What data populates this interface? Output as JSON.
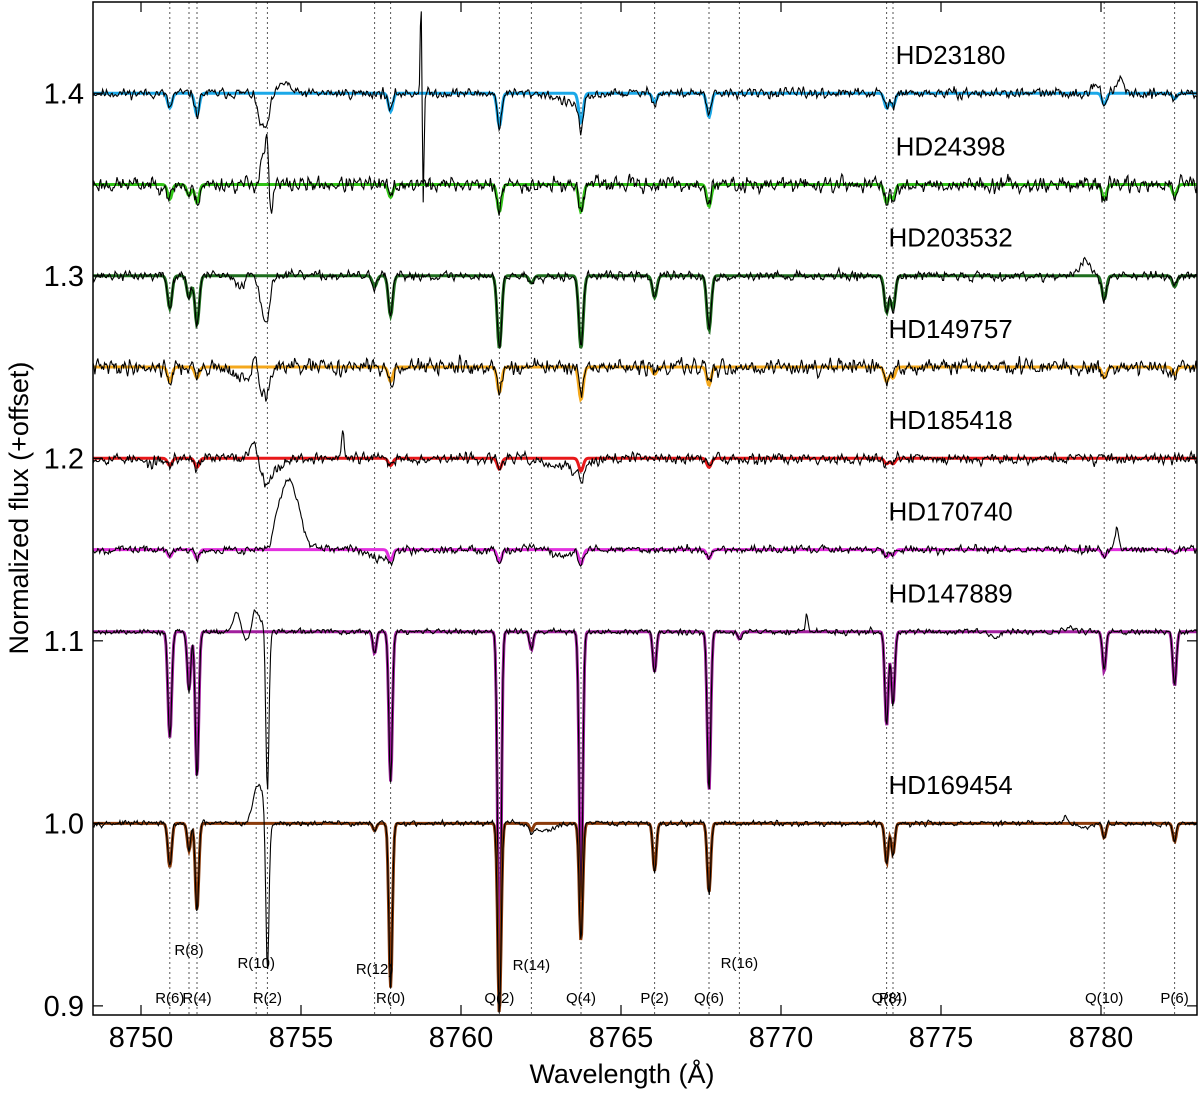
{
  "chart_data": {
    "type": "line",
    "xlabel": "Wavelength (Å)",
    "ylabel": "Normalized flux (+offset)",
    "xlim": [
      8748.5,
      8783
    ],
    "ylim": [
      0.895,
      1.45
    ],
    "xticks": [
      8750,
      8755,
      8760,
      8765,
      8770,
      8775,
      8780
    ],
    "xtick_labels": [
      "8750",
      "8755",
      "8760",
      "8765",
      "8770",
      "8775",
      "8780"
    ],
    "yticks": [
      0.9,
      1.0,
      1.1,
      1.2,
      1.3,
      1.4
    ],
    "ytick_labels": [
      "0.9",
      "1.0",
      "1.1",
      "1.2",
      "1.3",
      "1.4"
    ],
    "grid": "vertical dotted lines at transition wavelengths",
    "transitions": [
      {
        "label": "R(6)",
        "x": 8750.9,
        "row": 3
      },
      {
        "label": "R(8)",
        "x": 8751.5,
        "row": 1
      },
      {
        "label": "R(4)",
        "x": 8751.75,
        "row": 3
      },
      {
        "label": "R(10)",
        "x": 8753.6,
        "row": 2
      },
      {
        "label": "R(2)",
        "x": 8753.95,
        "row": 3
      },
      {
        "label": "R(12)",
        "x": 8757.3,
        "row": 2
      },
      {
        "label": "R(0)",
        "x": 8757.8,
        "row": 3
      },
      {
        "label": "Q(2)",
        "x": 8761.2,
        "row": 3
      },
      {
        "label": "R(14)",
        "x": 8762.2,
        "row": 2
      },
      {
        "label": "Q(4)",
        "x": 8763.75,
        "row": 3
      },
      {
        "label": "P(2)",
        "x": 8766.05,
        "row": 3
      },
      {
        "label": "Q(6)",
        "x": 8767.75,
        "row": 3
      },
      {
        "label": "R(16)",
        "x": 8768.7,
        "row": 2
      },
      {
        "label": "Q(8)",
        "x": 8773.3,
        "row": 3
      },
      {
        "label": "P(4)",
        "x": 8773.5,
        "row": 3
      },
      {
        "label": "Q(10)",
        "x": 8780.1,
        "row": 3
      },
      {
        "label": "P(6)",
        "x": 8782.3,
        "row": 3
      }
    ],
    "series": [
      {
        "name": "HD23180",
        "offset": 1.4,
        "fit_color": "#1ba8e8",
        "noise": 0.0022,
        "seed": 11,
        "label_x": 8775.3,
        "label_y": 1.416,
        "lines": [
          [
            8750.9,
            0.008,
            0.15
          ],
          [
            8751.75,
            0.012,
            0.15
          ],
          [
            8757.8,
            0.01,
            0.15
          ],
          [
            8761.2,
            0.018,
            0.15
          ],
          [
            8763.75,
            0.016,
            0.15
          ],
          [
            8766.05,
            0.005,
            0.15
          ],
          [
            8767.75,
            0.013,
            0.15
          ],
          [
            8773.3,
            0.008,
            0.15
          ],
          [
            8773.5,
            0.007,
            0.15
          ],
          [
            8780.1,
            0.006,
            0.15
          ],
          [
            8782.3,
            0.003,
            0.15
          ]
        ],
        "features": [
          [
            8753.9,
            -0.018,
            0.12
          ],
          [
            8753.7,
            -0.01,
            0.1
          ],
          [
            8754.5,
            0.006,
            0.15
          ],
          [
            8758.75,
            0.053,
            0.025
          ],
          [
            8758.82,
            -0.062,
            0.025
          ],
          [
            8763.5,
            -0.006,
            0.4
          ],
          [
            8779.8,
            0.006,
            0.1
          ],
          [
            8780.6,
            0.008,
            0.1
          ]
        ]
      },
      {
        "name": "HD24398",
        "offset": 1.35,
        "fit_color": "#31c417",
        "noise": 0.0035,
        "seed": 23,
        "label_x": 8775.3,
        "label_y": 1.366,
        "lines": [
          [
            8750.9,
            0.008,
            0.15
          ],
          [
            8751.5,
            0.006,
            0.15
          ],
          [
            8751.75,
            0.01,
            0.15
          ],
          [
            8757.8,
            0.007,
            0.15
          ],
          [
            8761.2,
            0.015,
            0.15
          ],
          [
            8763.75,
            0.015,
            0.15
          ],
          [
            8767.75,
            0.012,
            0.15
          ],
          [
            8773.3,
            0.01,
            0.15
          ],
          [
            8773.5,
            0.008,
            0.15
          ],
          [
            8780.1,
            0.008,
            0.15
          ],
          [
            8782.3,
            0.006,
            0.15
          ]
        ],
        "features": [
          [
            8753.8,
            0.015,
            0.08
          ],
          [
            8753.95,
            0.025,
            0.06
          ],
          [
            8754.05,
            -0.022,
            0.06
          ]
        ]
      },
      {
        "name": "HD203532",
        "offset": 1.3,
        "fit_color": "#1e6e1e",
        "noise": 0.0022,
        "seed": 37,
        "label_x": 8775.3,
        "label_y": 1.316,
        "lines": [
          [
            8750.9,
            0.018,
            0.15
          ],
          [
            8751.5,
            0.012,
            0.15
          ],
          [
            8751.75,
            0.027,
            0.15
          ],
          [
            8757.3,
            0.006,
            0.15
          ],
          [
            8757.8,
            0.022,
            0.15
          ],
          [
            8761.2,
            0.04,
            0.15
          ],
          [
            8762.2,
            0.004,
            0.15
          ],
          [
            8763.75,
            0.04,
            0.15
          ],
          [
            8766.05,
            0.012,
            0.15
          ],
          [
            8767.75,
            0.03,
            0.15
          ],
          [
            8773.3,
            0.02,
            0.15
          ],
          [
            8773.5,
            0.018,
            0.15
          ],
          [
            8780.1,
            0.013,
            0.15
          ],
          [
            8782.3,
            0.006,
            0.15
          ]
        ],
        "features": [
          [
            8753.1,
            -0.005,
            0.2
          ],
          [
            8753.4,
            0.003,
            0.1
          ],
          [
            8753.8,
            -0.015,
            0.1
          ],
          [
            8753.95,
            -0.022,
            0.08
          ],
          [
            8779.5,
            0.008,
            0.15
          ]
        ]
      },
      {
        "name": "HD149757",
        "offset": 1.25,
        "fit_color": "#f4a81c",
        "noise": 0.0035,
        "seed": 41,
        "label_x": 8775.3,
        "label_y": 1.266,
        "lines": [
          [
            8750.9,
            0.008,
            0.15
          ],
          [
            8751.75,
            0.006,
            0.15
          ],
          [
            8757.8,
            0.008,
            0.15
          ],
          [
            8761.2,
            0.014,
            0.15
          ],
          [
            8763.75,
            0.018,
            0.15
          ],
          [
            8766.05,
            0.004,
            0.15
          ],
          [
            8767.75,
            0.01,
            0.15
          ],
          [
            8773.3,
            0.008,
            0.15
          ],
          [
            8773.5,
            0.006,
            0.15
          ],
          [
            8780.1,
            0.006,
            0.15
          ],
          [
            8782.3,
            0.004,
            0.15
          ]
        ],
        "features": [
          [
            8753.2,
            -0.007,
            0.25
          ],
          [
            8753.6,
            0.008,
            0.08
          ],
          [
            8753.75,
            -0.015,
            0.08
          ],
          [
            8753.95,
            -0.015,
            0.08
          ]
        ]
      },
      {
        "name": "HD185418",
        "offset": 1.2,
        "fit_color": "#e8181a",
        "noise": 0.0025,
        "seed": 53,
        "label_x": 8775.3,
        "label_y": 1.216,
        "lines": [
          [
            8750.9,
            0.004,
            0.15
          ],
          [
            8751.75,
            0.005,
            0.15
          ],
          [
            8757.8,
            0.004,
            0.15
          ],
          [
            8761.2,
            0.006,
            0.15
          ],
          [
            8763.75,
            0.007,
            0.15
          ],
          [
            8767.75,
            0.005,
            0.15
          ],
          [
            8773.3,
            0.003,
            0.15
          ],
          [
            8773.5,
            0.003,
            0.15
          ]
        ],
        "features": [
          [
            8750.3,
            -0.003,
            0.3
          ],
          [
            8753.5,
            0.01,
            0.1
          ],
          [
            8753.9,
            -0.01,
            0.15
          ],
          [
            8754.2,
            -0.006,
            0.2
          ],
          [
            8756.3,
            0.015,
            0.04
          ],
          [
            8762.9,
            -0.004,
            0.4
          ],
          [
            8763.7,
            -0.006,
            0.3
          ]
        ]
      },
      {
        "name": "HD170740",
        "offset": 1.15,
        "fit_color": "#e22fdf",
        "noise": 0.0018,
        "seed": 67,
        "label_x": 8775.3,
        "label_y": 1.166,
        "lines": [
          [
            8750.9,
            0.004,
            0.15
          ],
          [
            8751.75,
            0.005,
            0.15
          ],
          [
            8757.8,
            0.006,
            0.15
          ],
          [
            8761.2,
            0.007,
            0.15
          ],
          [
            8763.75,
            0.008,
            0.15
          ],
          [
            8767.75,
            0.005,
            0.15
          ],
          [
            8773.3,
            0.004,
            0.15
          ],
          [
            8773.5,
            0.003,
            0.15
          ],
          [
            8780.1,
            0.004,
            0.15
          ],
          [
            8782.3,
            0.002,
            0.15
          ]
        ],
        "features": [
          [
            8754.4,
            0.02,
            0.25
          ],
          [
            8754.75,
            0.028,
            0.25
          ],
          [
            8754.0,
            -0.005,
            0.08
          ],
          [
            8757.5,
            -0.004,
            0.3
          ],
          [
            8762.5,
            0.002,
            0.4
          ],
          [
            8763.1,
            -0.004,
            0.4
          ],
          [
            8780.5,
            0.012,
            0.06
          ]
        ]
      },
      {
        "name": "HD147889",
        "offset": 1.105,
        "fit_color": "#a11f9e",
        "noise": 0.0013,
        "seed": 79,
        "label_x": 8775.3,
        "label_y": 1.121,
        "lines": [
          [
            8750.9,
            0.058,
            0.13
          ],
          [
            8751.5,
            0.032,
            0.12
          ],
          [
            8751.75,
            0.08,
            0.12
          ],
          [
            8757.3,
            0.012,
            0.12
          ],
          [
            8757.8,
            0.082,
            0.12
          ],
          [
            8761.2,
            0.2,
            0.12
          ],
          [
            8762.2,
            0.01,
            0.12
          ],
          [
            8763.75,
            0.15,
            0.12
          ],
          [
            8766.05,
            0.022,
            0.12
          ],
          [
            8767.75,
            0.088,
            0.12
          ],
          [
            8768.7,
            0.004,
            0.12
          ],
          [
            8773.3,
            0.052,
            0.12
          ],
          [
            8773.5,
            0.04,
            0.12
          ],
          [
            8780.1,
            0.022,
            0.12
          ],
          [
            8782.3,
            0.03,
            0.12
          ]
        ],
        "features": [
          [
            8753.0,
            0.01,
            0.12
          ],
          [
            8753.3,
            -0.006,
            0.12
          ],
          [
            8753.55,
            0.012,
            0.1
          ],
          [
            8753.8,
            0.006,
            0.1
          ],
          [
            8753.95,
            -0.09,
            0.05
          ],
          [
            8770.8,
            0.01,
            0.04
          ],
          [
            8776.7,
            -0.003,
            0.15
          ],
          [
            8779.0,
            0.002,
            0.2
          ]
        ]
      },
      {
        "name": "HD169454",
        "offset": 1.0,
        "fit_color": "#8a3a0a",
        "noise": 0.0012,
        "seed": 97,
        "label_x": 8775.3,
        "label_y": 1.016,
        "lines": [
          [
            8750.9,
            0.024,
            0.13
          ],
          [
            8751.5,
            0.015,
            0.12
          ],
          [
            8751.75,
            0.048,
            0.12
          ],
          [
            8757.3,
            0.004,
            0.12
          ],
          [
            8757.8,
            0.09,
            0.12
          ],
          [
            8761.2,
            0.105,
            0.12
          ],
          [
            8762.2,
            0.004,
            0.12
          ],
          [
            8763.75,
            0.065,
            0.12
          ],
          [
            8766.05,
            0.026,
            0.12
          ],
          [
            8767.75,
            0.038,
            0.12
          ],
          [
            8773.3,
            0.022,
            0.12
          ],
          [
            8773.5,
            0.017,
            0.12
          ],
          [
            8780.1,
            0.008,
            0.12
          ],
          [
            8782.3,
            0.01,
            0.12
          ]
        ],
        "features": [
          [
            8753.6,
            0.018,
            0.12
          ],
          [
            8753.8,
            0.012,
            0.1
          ],
          [
            8753.95,
            -0.085,
            0.05
          ],
          [
            8762.6,
            -0.004,
            0.35
          ],
          [
            8779.5,
            -0.002,
            0.2
          ],
          [
            8778.9,
            0.004,
            0.06
          ]
        ]
      }
    ]
  }
}
